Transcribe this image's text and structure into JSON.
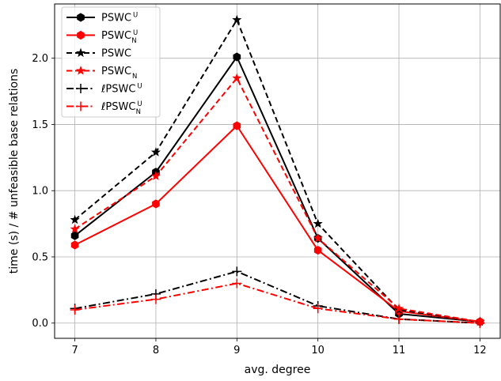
{
  "chart_data": {
    "type": "line",
    "x": [
      7,
      8,
      9,
      10,
      11,
      12
    ],
    "xlim": [
      6.75,
      12.25
    ],
    "ylim": [
      -0.115,
      2.41
    ],
    "xticks": [
      "7",
      "8",
      "9",
      "10",
      "11",
      "12"
    ],
    "yticks": [
      "0.0",
      "0.5",
      "1.0",
      "1.5",
      "2.0"
    ],
    "ytick_values": [
      0.0,
      0.5,
      1.0,
      1.5,
      2.0
    ],
    "xlabel": "avg. degree",
    "ylabel": "time (s) / # unfeasible base relations",
    "grid": true,
    "legend_position": "top-left",
    "series": [
      {
        "name": "PSWC",
        "sup": "U",
        "sub": "",
        "color": "#000000",
        "dash": "solid",
        "marker": "hexagon",
        "values": [
          0.66,
          1.14,
          2.01,
          0.64,
          0.07,
          0.01
        ]
      },
      {
        "name": "PSWC",
        "sup": "U",
        "sub": "N",
        "color": "#ff0000",
        "dash": "solid",
        "marker": "hexagon",
        "values": [
          0.59,
          0.9,
          1.49,
          0.55,
          0.09,
          0.01
        ]
      },
      {
        "name": "PSWC",
        "sup": "",
        "sub": "",
        "color": "#000000",
        "dash": "dashed",
        "marker": "star",
        "values": [
          0.78,
          1.29,
          2.29,
          0.75,
          0.1,
          0.01
        ]
      },
      {
        "name": "PSWC",
        "sup": "",
        "sub": "N",
        "color": "#ff0000",
        "dash": "dashed",
        "marker": "star",
        "values": [
          0.71,
          1.11,
          1.85,
          0.64,
          0.11,
          0.01
        ]
      },
      {
        "name": "ℓPSWC",
        "sup": "U",
        "sub": "",
        "color": "#000000",
        "dash": "dashdot",
        "marker": "plus",
        "values": [
          0.11,
          0.22,
          0.39,
          0.13,
          0.03,
          0.0
        ]
      },
      {
        "name": "ℓPSWC",
        "sup": "U",
        "sub": "N",
        "color": "#ff0000",
        "dash": "dashdot",
        "marker": "plus",
        "values": [
          0.1,
          0.18,
          0.3,
          0.11,
          0.03,
          0.0
        ]
      }
    ]
  }
}
